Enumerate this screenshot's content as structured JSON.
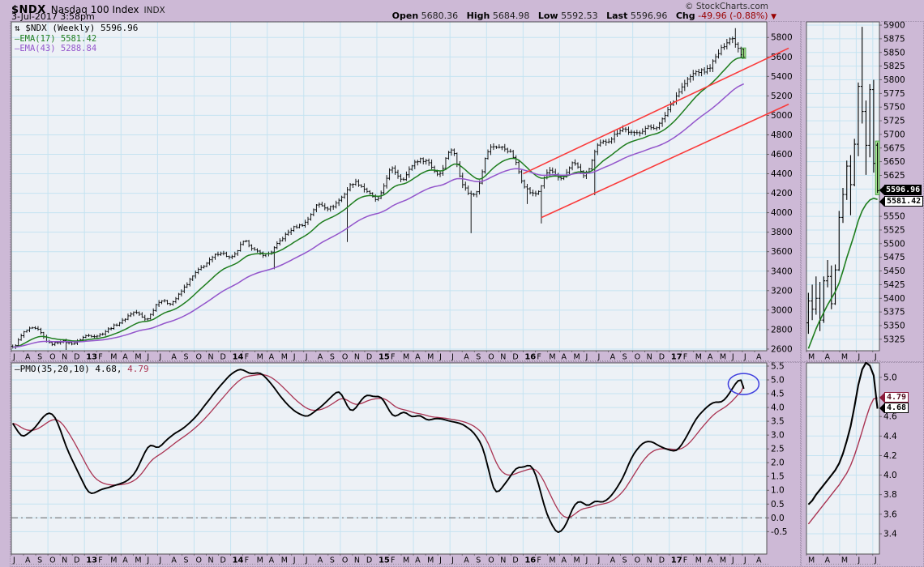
{
  "header": {
    "symbol": "$NDX",
    "name": "Nasdaq 100 Index",
    "exchange": "INDX",
    "copyright": "© StockCharts.com",
    "datetime": "3-Jul-2017 3:58pm",
    "quote": {
      "open_label": "Open",
      "open_value": "5680.36",
      "high_label": "High",
      "high_value": "5684.98",
      "low_label": "Low",
      "low_value": "5592.53",
      "last_label": "Last",
      "last_value": "5596.96",
      "chg_label": "Chg",
      "chg_value": "-49.96 (-0.88%)",
      "arrow": "▼"
    }
  },
  "colors": {
    "bg": "#CDB9D6",
    "plot_bg": "#EDF1F6",
    "grid": "#C5E3F1",
    "bars": "#000000",
    "ema17": "#1E7D1E",
    "ema43": "#9355CB",
    "channel": "#FA3A3A",
    "pmo": "#000000",
    "signal": "#A93352",
    "ellipse": "#3D3DDE",
    "highlight_fill": "#AEE896",
    "highlight_stroke": "#3D9B3D",
    "zero_line": "#666666",
    "axis_text": "#000000",
    "border": "#444444",
    "box_border": "#8a7a96"
  },
  "chart_data": [
    {
      "id": "main-price",
      "type": "ohlc",
      "title": "$NDX (Weekly)",
      "legend": {
        "icon": "⇅",
        "line1": "$NDX (Weekly) 5596.96",
        "dash": "—",
        "ema17_label": "EMA(17) 5581.42",
        "ema43_label": "EMA(43) 5288.84"
      },
      "ylim": [
        2583,
        5960
      ],
      "ytick_min": 2600,
      "ytick_max": 5800,
      "ytick_step": 200,
      "grid": true,
      "x_labels": [
        "J",
        "A",
        "S",
        "O",
        "N",
        "D",
        "13",
        "F",
        "M",
        "A",
        "M",
        "J",
        "J",
        "A",
        "S",
        "O",
        "N",
        "D",
        "14",
        "F",
        "M",
        "A",
        "M",
        "J",
        "J",
        "A",
        "S",
        "O",
        "N",
        "D",
        "15",
        "F",
        "M",
        "A",
        "M",
        "J",
        "J",
        "A",
        "S",
        "O",
        "N",
        "D",
        "16",
        "F",
        "M",
        "A",
        "M",
        "J",
        "J",
        "A",
        "S",
        "O",
        "N",
        "D",
        "17",
        "F",
        "M",
        "A",
        "M",
        "J",
        "J",
        "A"
      ],
      "monthly_closes": [
        2615,
        2780,
        2800,
        2660,
        2680,
        2660,
        2735,
        2740,
        2815,
        2890,
        2980,
        2910,
        3090,
        3075,
        3220,
        3380,
        3490,
        3590,
        3540,
        3700,
        3600,
        3580,
        3720,
        3840,
        3900,
        4080,
        4050,
        4160,
        4310,
        4230,
        4140,
        4440,
        4350,
        4520,
        4530,
        4400,
        4650,
        4280,
        4210,
        4630,
        4670,
        4590,
        4280,
        4200,
        4430,
        4340,
        4510,
        4390,
        4680,
        4750,
        4860,
        4810,
        4870,
        4900,
        5110,
        5300,
        5440,
        5470,
        5650,
        5790,
        5597
      ],
      "low_spikes": [
        {
          "m": 4.5,
          "low": 2500
        },
        {
          "m": 21.5,
          "low": 3420
        },
        {
          "m": 27.5,
          "low": 3700
        },
        {
          "m": 37.6,
          "low": 3790
        },
        {
          "m": 42.3,
          "low": 4090
        },
        {
          "m": 43.3,
          "low": 3890
        },
        {
          "m": 47.8,
          "low": 4180
        }
      ],
      "high_spikes": [
        {
          "m": 59.4,
          "high": 5895
        }
      ],
      "last_bar": {
        "open": 5680.36,
        "high": 5684.98,
        "low": 5592.53,
        "close": 5596.96,
        "highlighted": true
      },
      "ema17_last": 5581.42,
      "ema43_last": 5288.84,
      "trend_channel": [
        {
          "m1": 42.0,
          "v1": 4400,
          "m2": 63.8,
          "v2": 5690
        },
        {
          "m1": 43.5,
          "v1": 3950,
          "m2": 63.8,
          "v2": 5115
        }
      ]
    },
    {
      "id": "pmo",
      "type": "line",
      "legend": {
        "dash": "—",
        "label": "PMO(35,20,10) 4.68,",
        "signal": "4.79"
      },
      "ylim": [
        -1.313,
        5.617
      ],
      "ytick_min": -0.5,
      "ytick_max": 5.5,
      "ytick_step": 0.5,
      "zero_line": 0.0,
      "last_values": {
        "pmo": 4.68,
        "signal": 4.79
      },
      "keypoints": [
        [
          0,
          3.5
        ],
        [
          0.9,
          2.85
        ],
        [
          2,
          3.3
        ],
        [
          3,
          3.87
        ],
        [
          3.6,
          3.7
        ],
        [
          4.6,
          2.45
        ],
        [
          6.4,
          0.82
        ],
        [
          7.5,
          1.05
        ],
        [
          8.5,
          1.18
        ],
        [
          9.4,
          1.3
        ],
        [
          10.2,
          1.62
        ],
        [
          11,
          2.45
        ],
        [
          11.4,
          2.72
        ],
        [
          12,
          2.45
        ],
        [
          12.9,
          2.9
        ],
        [
          14,
          3.22
        ],
        [
          15,
          3.58
        ],
        [
          16,
          4.15
        ],
        [
          17,
          4.72
        ],
        [
          18,
          5.22
        ],
        [
          18.9,
          5.44
        ],
        [
          19.6,
          5.2
        ],
        [
          20.5,
          5.3
        ],
        [
          21.4,
          4.82
        ],
        [
          22.4,
          4.22
        ],
        [
          23.4,
          3.8
        ],
        [
          24.3,
          3.66
        ],
        [
          25.3,
          3.98
        ],
        [
          26.2,
          4.35
        ],
        [
          26.9,
          4.66
        ],
        [
          27.9,
          3.75
        ],
        [
          29.1,
          4.5
        ],
        [
          29.8,
          4.36
        ],
        [
          30.3,
          4.44
        ],
        [
          31.4,
          3.6
        ],
        [
          32.2,
          3.9
        ],
        [
          32.9,
          3.62
        ],
        [
          33.6,
          3.74
        ],
        [
          34.2,
          3.5
        ],
        [
          34.9,
          3.64
        ],
        [
          35.8,
          3.52
        ],
        [
          36.9,
          3.44
        ],
        [
          37.9,
          3.12
        ],
        [
          38.7,
          2.62
        ],
        [
          39.7,
          0.75
        ],
        [
          40.5,
          1.22
        ],
        [
          41.5,
          1.88
        ],
        [
          42.1,
          1.82
        ],
        [
          42.6,
          2.02
        ],
        [
          43.1,
          1.55
        ],
        [
          43.8,
          0.28
        ],
        [
          44.8,
          -0.66
        ],
        [
          45.5,
          -0.32
        ],
        [
          46.2,
          0.52
        ],
        [
          46.8,
          0.63
        ],
        [
          47.3,
          0.36
        ],
        [
          47.9,
          0.66
        ],
        [
          48.5,
          0.52
        ],
        [
          49.3,
          0.8
        ],
        [
          50.2,
          1.45
        ],
        [
          51,
          2.3
        ],
        [
          51.9,
          2.75
        ],
        [
          52.5,
          2.8
        ],
        [
          53.2,
          2.6
        ],
        [
          53.9,
          2.48
        ],
        [
          54.6,
          2.38
        ],
        [
          55.4,
          2.9
        ],
        [
          56.3,
          3.68
        ],
        [
          57.1,
          4.05
        ],
        [
          57.8,
          4.22
        ],
        [
          58.3,
          4.16
        ],
        [
          58.9,
          4.45
        ],
        [
          59.5,
          4.95
        ],
        [
          59.8,
          5.07
        ],
        [
          60.05,
          5.0
        ],
        [
          60.3,
          4.68
        ]
      ],
      "ellipse": {
        "m": 60.1,
        "v": 4.85
      }
    },
    {
      "id": "mini-price",
      "type": "ohlc",
      "ylim": [
        5304,
        5906
      ],
      "ytick_min": 5325,
      "ytick_max": 5900,
      "ytick_step": 25,
      "x_labels": [
        "M",
        "A",
        "M",
        "J",
        "J"
      ],
      "bars": [
        [
          5355,
          5410,
          5335,
          5395
        ],
        [
          5395,
          5425,
          5360,
          5380
        ],
        [
          5380,
          5440,
          5370,
          5400
        ],
        [
          5400,
          5430,
          5340,
          5360
        ],
        [
          5360,
          5440,
          5355,
          5432
        ],
        [
          5432,
          5470,
          5420,
          5440
        ],
        [
          5440,
          5460,
          5380,
          5390
        ],
        [
          5390,
          5462,
          5388,
          5452
        ],
        [
          5452,
          5560,
          5450,
          5548
        ],
        [
          5548,
          5602,
          5538,
          5590
        ],
        [
          5590,
          5652,
          5580,
          5642
        ],
        [
          5642,
          5662,
          5552,
          5608
        ],
        [
          5608,
          5692,
          5605,
          5682
        ],
        [
          5682,
          5795,
          5660,
          5788
        ],
        [
          5788,
          5897,
          5720,
          5742
        ],
        [
          5742,
          5762,
          5626,
          5680
        ],
        [
          5680,
          5792,
          5658,
          5782
        ],
        [
          5782,
          5800,
          5630,
          5647
        ],
        [
          5680.36,
          5684.98,
          5592.53,
          5596.96
        ]
      ],
      "ema17": [
        5308,
        5326,
        5344,
        5360,
        5374,
        5388,
        5400,
        5412,
        5428,
        5450,
        5474,
        5496,
        5518,
        5542,
        5560,
        5572,
        5580,
        5583,
        5581
      ],
      "last_bar_highlighted": true,
      "callouts": [
        {
          "text": "5596.96",
          "value": 5596.96,
          "style": "inverse"
        },
        {
          "text": "5581.42",
          "value": 5581.42,
          "style": "plain"
        }
      ]
    },
    {
      "id": "mini-pmo",
      "type": "line",
      "ylim": [
        3.193,
        5.148
      ],
      "ytick_min": 3.4,
      "ytick_max": 5.0,
      "ytick_step": 0.2,
      "x_labels": [
        "M",
        "A",
        "M",
        "J",
        "J"
      ],
      "pmo": [
        3.7,
        3.74,
        3.8,
        3.85,
        3.9,
        3.95,
        4.0,
        4.05,
        4.12,
        4.22,
        4.35,
        4.5,
        4.7,
        4.92,
        5.08,
        5.15,
        5.12,
        5.02,
        4.68
      ],
      "signal": [
        3.5,
        3.55,
        3.6,
        3.65,
        3.7,
        3.75,
        3.8,
        3.85,
        3.9,
        3.96,
        4.02,
        4.1,
        4.2,
        4.32,
        4.45,
        4.58,
        4.7,
        4.78,
        4.79
      ],
      "callouts": [
        {
          "text": "4.79",
          "value": 4.79,
          "style": "signal"
        },
        {
          "text": "4.68",
          "value": 4.68,
          "style": "plain"
        }
      ]
    }
  ]
}
